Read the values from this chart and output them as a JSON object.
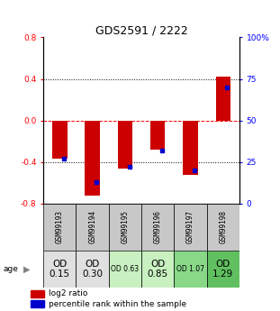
{
  "title": "GDS2591 / 2222",
  "samples": [
    "GSM99193",
    "GSM99194",
    "GSM99195",
    "GSM99196",
    "GSM99197",
    "GSM99198"
  ],
  "log2_ratio": [
    -0.37,
    -0.72,
    -0.46,
    -0.28,
    -0.52,
    0.42
  ],
  "percentile_rank": [
    27,
    13,
    22,
    32,
    20,
    70
  ],
  "ylim_left": [
    -0.8,
    0.8
  ],
  "ylim_right": [
    0,
    100
  ],
  "bar_color": "#cc0000",
  "dot_color": "#0000cc",
  "age_labels": [
    "OD\n0.15",
    "OD\n0.30",
    "OD 0.63",
    "OD\n0.85",
    "OD 1.07",
    "OD\n1.29"
  ],
  "age_bg_colors": [
    "#e0e0e0",
    "#e0e0e0",
    "#c8f0c0",
    "#c8f0c0",
    "#88d888",
    "#60c060"
  ],
  "sample_bg_color": "#c8c8c8",
  "age_label_large": [
    true,
    true,
    false,
    true,
    false,
    true
  ],
  "legend_log2": "log2 ratio",
  "legend_pct": "percentile rank within the sample",
  "left_ticks": [
    -0.8,
    -0.4,
    0.0,
    0.4,
    0.8
  ],
  "right_ticks": [
    0,
    25,
    50,
    75,
    100
  ],
  "right_tick_labels": [
    "0",
    "25",
    "50",
    "75",
    "100%"
  ]
}
